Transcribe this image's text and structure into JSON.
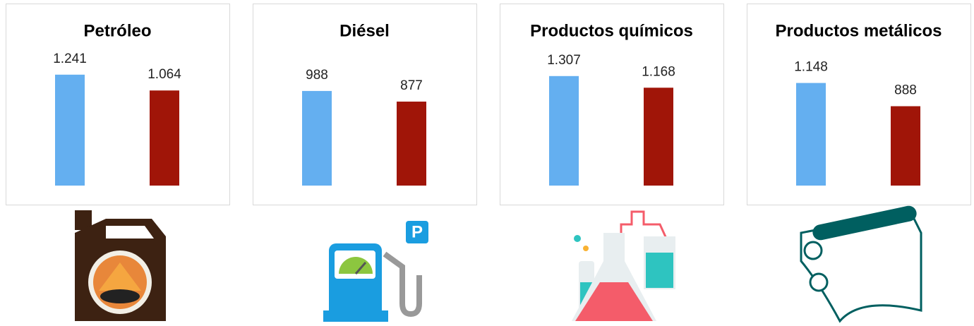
{
  "chart_data": [
    {
      "type": "bar",
      "title": "Petróleo",
      "categories": [
        null,
        null
      ],
      "values": [
        1241,
        1064
      ],
      "value_labels": [
        "1.241",
        "1.064"
      ],
      "colors": [
        "#64aff0",
        "#a01508"
      ],
      "ylim": [
        0,
        1500
      ]
    },
    {
      "type": "bar",
      "title": "Diésel",
      "categories": [
        null,
        null
      ],
      "values": [
        988,
        877
      ],
      "value_labels": [
        "988",
        "877"
      ],
      "colors": [
        "#64aff0",
        "#a01508"
      ],
      "ylim": [
        0,
        1400
      ]
    },
    {
      "type": "bar",
      "title": "Productos químicos",
      "categories": [
        null,
        null
      ],
      "values": [
        1307,
        1168
      ],
      "value_labels": [
        "1.307",
        "1.168"
      ],
      "colors": [
        "#64aff0",
        "#a01508"
      ],
      "ylim": [
        0,
        1600
      ]
    },
    {
      "type": "bar",
      "title": "Productos metálicos",
      "categories": [
        null,
        null
      ],
      "values": [
        1148,
        888
      ],
      "value_labels": [
        "1.148",
        "888"
      ],
      "colors": [
        "#64aff0",
        "#a01508"
      ],
      "ylim": [
        0,
        1500
      ]
    }
  ]
}
